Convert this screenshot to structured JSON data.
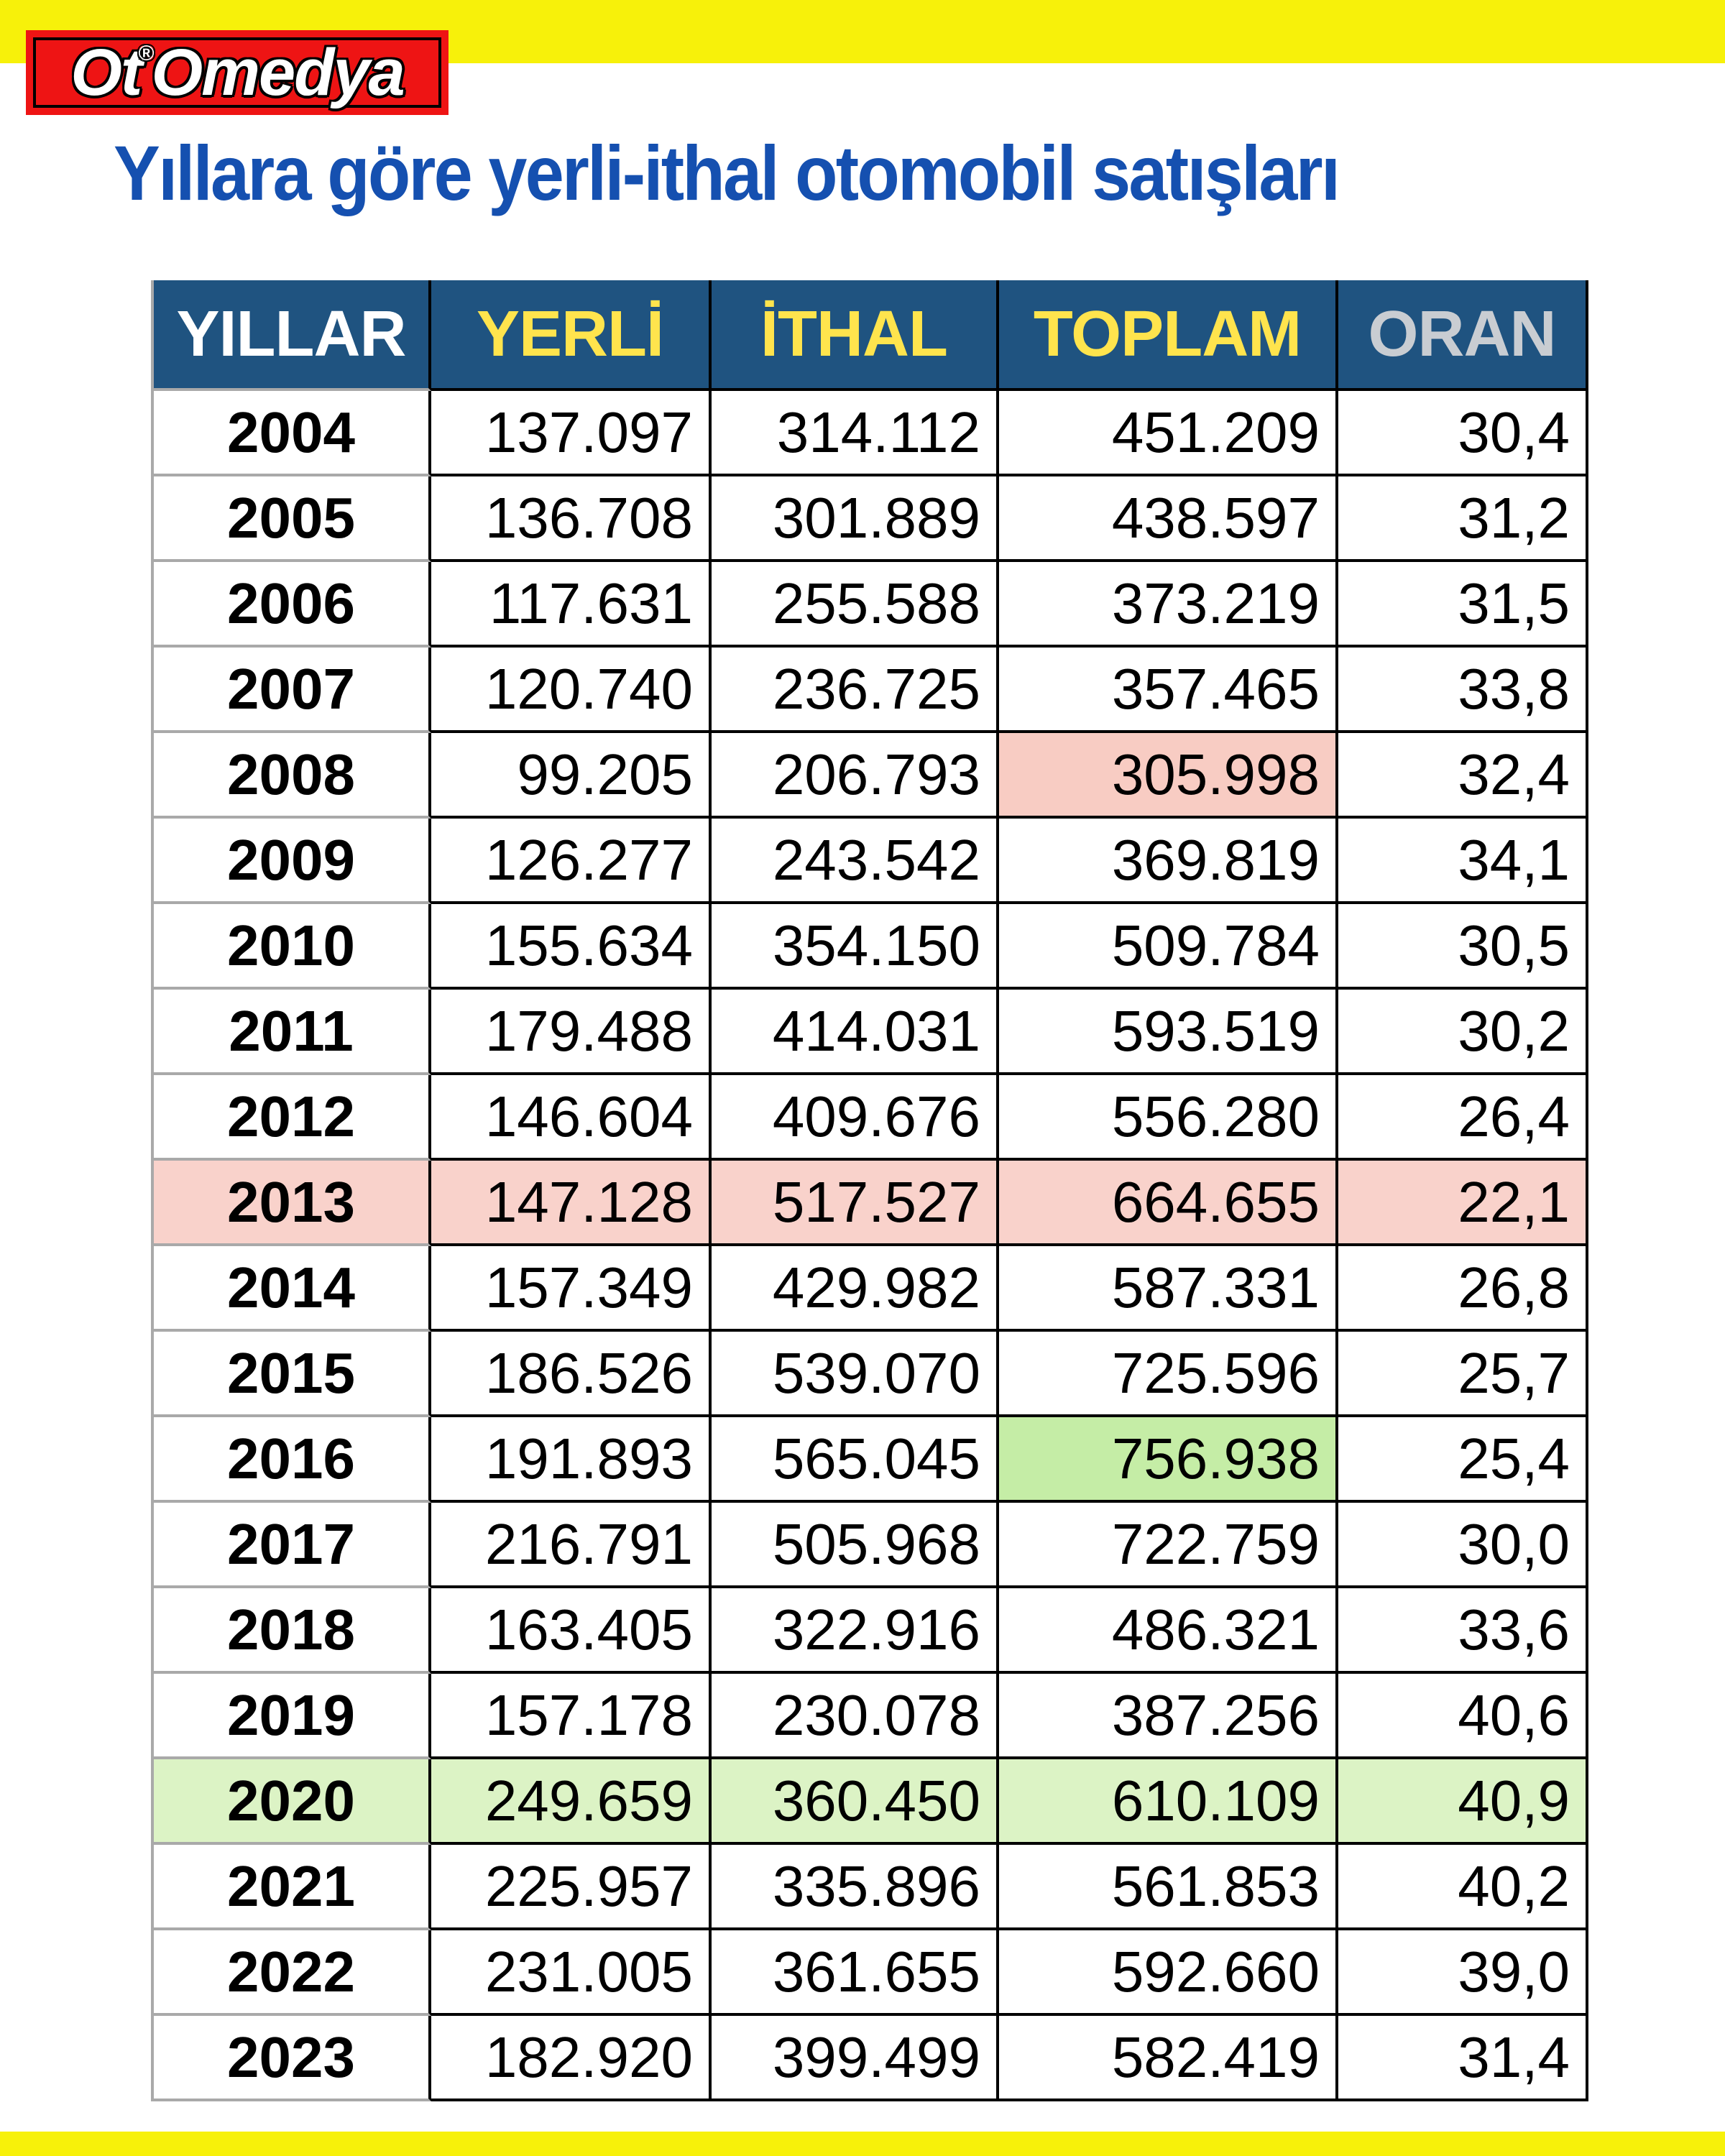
{
  "page": {
    "background": "#FFFFFF",
    "top_bar_color": "#F7F10A",
    "bottom_bar_color": "#F7F10A"
  },
  "logo": {
    "part1": "Ot",
    "reg": "®",
    "part2": "Omedya",
    "bg_color": "#EE1414",
    "text_color": "#FFFFFF"
  },
  "title": {
    "text": "Yıllara göre yerli-ithal otomobil satışları",
    "color": "#1550B0"
  },
  "table": {
    "header_bg": "#1F5380",
    "columns": [
      {
        "key": "yillar",
        "label": "YILLAR",
        "color": "#FFFFFF"
      },
      {
        "key": "yerli",
        "label": "YERLİ",
        "color": "#FFE44D"
      },
      {
        "key": "ithal",
        "label": "İTHAL",
        "color": "#FFE44D"
      },
      {
        "key": "toplam",
        "label": "TOPLAM",
        "color": "#FFE44D"
      },
      {
        "key": "oran",
        "label": "ORAN",
        "color": "#C9CDD2"
      }
    ],
    "highlight_colors": {
      "pink_cell": "#F8CCC3",
      "pink_row": "#F9D2CB",
      "green_cell": "#C5EDA6",
      "green_row": "#DCF3C5"
    }
  },
  "chart_data": {
    "type": "table",
    "title": "Yıllara göre yerli-ithal otomobil satışları",
    "columns": [
      "YILLAR",
      "YERLİ",
      "İTHAL",
      "TOPLAM",
      "ORAN"
    ],
    "rows": [
      {
        "yillar": "2004",
        "yerli": "137.097",
        "ithal": "314.112",
        "toplam": "451.209",
        "oran": "30,4",
        "hl": ""
      },
      {
        "yillar": "2005",
        "yerli": "136.708",
        "ithal": "301.889",
        "toplam": "438.597",
        "oran": "31,2",
        "hl": ""
      },
      {
        "yillar": "2006",
        "yerli": "117.631",
        "ithal": "255.588",
        "toplam": "373.219",
        "oran": "31,5",
        "hl": ""
      },
      {
        "yillar": "2007",
        "yerli": "120.740",
        "ithal": "236.725",
        "toplam": "357.465",
        "oran": "33,8",
        "hl": ""
      },
      {
        "yillar": "2008",
        "yerli": "99.205",
        "ithal": "206.793",
        "toplam": "305.998",
        "oran": "32,4",
        "hl": "toplam:pink"
      },
      {
        "yillar": "2009",
        "yerli": "126.277",
        "ithal": "243.542",
        "toplam": "369.819",
        "oran": "34,1",
        "hl": ""
      },
      {
        "yillar": "2010",
        "yerli": "155.634",
        "ithal": "354.150",
        "toplam": "509.784",
        "oran": "30,5",
        "hl": ""
      },
      {
        "yillar": "2011",
        "yerli": "179.488",
        "ithal": "414.031",
        "toplam": "593.519",
        "oran": "30,2",
        "hl": ""
      },
      {
        "yillar": "2012",
        "yerli": "146.604",
        "ithal": "409.676",
        "toplam": "556.280",
        "oran": "26,4",
        "hl": ""
      },
      {
        "yillar": "2013",
        "yerli": "147.128",
        "ithal": "517.527",
        "toplam": "664.655",
        "oran": "22,1",
        "hl": "row:pink"
      },
      {
        "yillar": "2014",
        "yerli": "157.349",
        "ithal": "429.982",
        "toplam": "587.331",
        "oran": "26,8",
        "hl": ""
      },
      {
        "yillar": "2015",
        "yerli": "186.526",
        "ithal": "539.070",
        "toplam": "725.596",
        "oran": "25,7",
        "hl": ""
      },
      {
        "yillar": "2016",
        "yerli": "191.893",
        "ithal": "565.045",
        "toplam": "756.938",
        "oran": "25,4",
        "hl": "toplam:green"
      },
      {
        "yillar": "2017",
        "yerli": "216.791",
        "ithal": "505.968",
        "toplam": "722.759",
        "oran": "30,0",
        "hl": ""
      },
      {
        "yillar": "2018",
        "yerli": "163.405",
        "ithal": "322.916",
        "toplam": "486.321",
        "oran": "33,6",
        "hl": ""
      },
      {
        "yillar": "2019",
        "yerli": "157.178",
        "ithal": "230.078",
        "toplam": "387.256",
        "oran": "40,6",
        "hl": ""
      },
      {
        "yillar": "2020",
        "yerli": "249.659",
        "ithal": "360.450",
        "toplam": "610.109",
        "oran": "40,9",
        "hl": "row:green"
      },
      {
        "yillar": "2021",
        "yerli": "225.957",
        "ithal": "335.896",
        "toplam": "561.853",
        "oran": "40,2",
        "hl": ""
      },
      {
        "yillar": "2022",
        "yerli": "231.005",
        "ithal": "361.655",
        "toplam": "592.660",
        "oran": "39,0",
        "hl": ""
      },
      {
        "yillar": "2023",
        "yerli": "182.920",
        "ithal": "399.499",
        "toplam": "582.419",
        "oran": "31,4",
        "hl": ""
      }
    ]
  }
}
